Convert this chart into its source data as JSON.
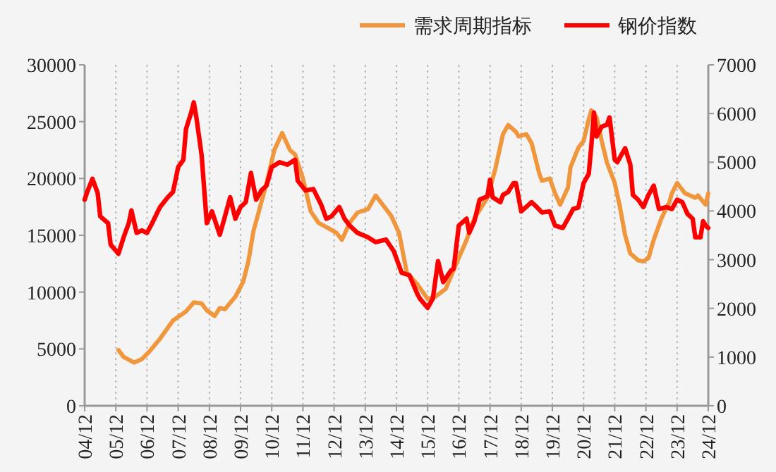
{
  "chart_data": {
    "type": "line",
    "legend": "top",
    "grid": "x",
    "line_style": "solid",
    "marker": "none",
    "xlim": [
      "2004-12",
      "2024-12"
    ],
    "xticks": [
      {
        "value": "2004-12",
        "label": "04/12"
      },
      {
        "value": "2005-12",
        "label": "05/12"
      },
      {
        "value": "2006-12",
        "label": "06/12"
      },
      {
        "value": "2007-12",
        "label": "07/12"
      },
      {
        "value": "2008-12",
        "label": "08/12"
      },
      {
        "value": "2009-12",
        "label": "09/12"
      },
      {
        "value": "2010-12",
        "label": "10/12"
      },
      {
        "value": "2011-12",
        "label": "11/12"
      },
      {
        "value": "2012-12",
        "label": "12/12"
      },
      {
        "value": "2013-12",
        "label": "13/12"
      },
      {
        "value": "2014-12",
        "label": "14/12"
      },
      {
        "value": "2015-12",
        "label": "15/12"
      },
      {
        "value": "2016-12",
        "label": "16/12"
      },
      {
        "value": "2017-12",
        "label": "17/12"
      },
      {
        "value": "2018-12",
        "label": "18/12"
      },
      {
        "value": "2019-12",
        "label": "19/12"
      },
      {
        "value": "2020-12",
        "label": "20/12"
      },
      {
        "value": "2021-12",
        "label": "21/12"
      },
      {
        "value": "2022-12",
        "label": "22/12"
      },
      {
        "value": "2023-12",
        "label": "23/12"
      },
      {
        "value": "2024-12",
        "label": "24/12"
      }
    ],
    "ylim": [
      0,
      30000
    ],
    "yticks": [
      0,
      5000,
      10000,
      15000,
      20000,
      25000,
      30000
    ],
    "y2lim": [
      0,
      7000
    ],
    "y2ticks": [
      0,
      1000,
      2000,
      3000,
      4000,
      5000,
      6000,
      7000
    ],
    "series": [
      {
        "name": "需求周期指标",
        "color": "#f0963c",
        "x": [
          "2006-01",
          "2006-03",
          "2006-07",
          "2006-10",
          "2007-01",
          "2007-05",
          "2007-10",
          "2008-03",
          "2008-06",
          "2008-09",
          "2008-11",
          "2009-02",
          "2009-04",
          "2009-06",
          "2009-10",
          "2010-01",
          "2010-03",
          "2010-05",
          "2010-08",
          "2010-10",
          "2011-01",
          "2011-04",
          "2011-07",
          "2011-09",
          "2011-12",
          "2012-03",
          "2012-06",
          "2012-10",
          "2013-01",
          "2013-03",
          "2013-06",
          "2013-09",
          "2014-01",
          "2014-04",
          "2014-06",
          "2014-10",
          "2015-01",
          "2015-04",
          "2015-08",
          "2015-12",
          "2016-03",
          "2016-07",
          "2016-11",
          "2017-03",
          "2017-06",
          "2017-11",
          "2018-02",
          "2018-05",
          "2018-07",
          "2018-10",
          "2018-11",
          "2019-02",
          "2019-04",
          "2019-07",
          "2019-08",
          "2019-11",
          "2020-01",
          "2020-03",
          "2020-06",
          "2020-07",
          "2020-10",
          "2020-12",
          "2021-02",
          "2021-03",
          "2021-05",
          "2021-07",
          "2021-09",
          "2021-12",
          "2022-02",
          "2022-04",
          "2022-06",
          "2022-09",
          "2022-11",
          "2023-01",
          "2023-03",
          "2023-06",
          "2023-09",
          "2023-10",
          "2023-12",
          "2024-03",
          "2024-07",
          "2024-08",
          "2024-11",
          "2024-12"
        ],
        "values": [
          4900,
          4300,
          3800,
          4100,
          4800,
          5900,
          7500,
          8300,
          9100,
          9000,
          8400,
          7900,
          8600,
          8500,
          9600,
          10900,
          12700,
          15400,
          17900,
          19600,
          22500,
          24000,
          22500,
          22100,
          20000,
          17100,
          16100,
          15600,
          15200,
          14600,
          16100,
          17000,
          17300,
          18500,
          17900,
          16700,
          15200,
          11700,
          10700,
          9400,
          9600,
          10300,
          12500,
          14600,
          16500,
          18300,
          20800,
          23900,
          24700,
          24100,
          23700,
          23900,
          23100,
          20400,
          19800,
          20000,
          18700,
          17700,
          19200,
          21000,
          22700,
          23300,
          25200,
          26000,
          25400,
          23300,
          21400,
          19600,
          17500,
          15000,
          13400,
          12800,
          12700,
          13000,
          14600,
          16500,
          17900,
          18700,
          19600,
          18700,
          18300,
          18500,
          17700,
          18700
        ]
      },
      {
        "name": "钢价指数",
        "color": "#ff0000",
        "axis": "y2",
        "x": [
          "2004-12",
          "2005-01",
          "2005-03",
          "2005-05",
          "2005-06",
          "2005-09",
          "2005-10",
          "2006-01",
          "2006-03",
          "2006-05",
          "2006-06",
          "2006-08",
          "2006-10",
          "2006-12",
          "2007-02",
          "2007-05",
          "2007-08",
          "2007-10",
          "2007-12",
          "2008-02",
          "2008-03",
          "2008-05",
          "2008-06",
          "2008-07",
          "2008-09",
          "2008-11",
          "2009-01",
          "2009-04",
          "2009-06",
          "2009-08",
          "2009-10",
          "2009-12",
          "2010-02",
          "2010-04",
          "2010-06",
          "2010-08",
          "2010-10",
          "2010-12",
          "2011-03",
          "2011-06",
          "2011-09",
          "2011-10",
          "2012-01",
          "2012-04",
          "2012-07",
          "2012-09",
          "2012-11",
          "2013-02",
          "2013-04",
          "2013-06",
          "2013-09",
          "2014-01",
          "2014-04",
          "2014-08",
          "2014-11",
          "2015-02",
          "2015-05",
          "2015-08",
          "2015-09",
          "2015-12",
          "2016-02",
          "2016-04",
          "2016-06",
          "2016-09",
          "2016-10",
          "2016-12",
          "2017-03",
          "2017-04",
          "2017-06",
          "2017-08",
          "2017-11",
          "2017-12",
          "2018-01",
          "2018-04",
          "2018-05",
          "2018-07",
          "2018-09",
          "2018-10",
          "2018-12",
          "2019-04",
          "2019-06",
          "2019-08",
          "2019-11",
          "2020-01",
          "2020-04",
          "2020-06",
          "2020-08",
          "2020-10",
          "2020-12",
          "2021-02",
          "2021-03",
          "2021-04",
          "2021-05",
          "2021-07",
          "2021-09",
          "2021-10",
          "2021-12",
          "2022-01",
          "2022-04",
          "2022-06",
          "2022-07",
          "2022-09",
          "2022-11",
          "2023-01",
          "2023-03",
          "2023-05",
          "2023-08",
          "2023-10",
          "2023-12",
          "2024-02",
          "2024-04",
          "2024-06",
          "2024-07",
          "2024-09",
          "2024-10",
          "2024-11",
          "2024-12"
        ],
        "values": [
          4230,
          4390,
          4660,
          4370,
          3890,
          3750,
          3310,
          3120,
          3460,
          3750,
          4010,
          3550,
          3600,
          3550,
          3750,
          4080,
          4280,
          4390,
          4900,
          5050,
          5680,
          6020,
          6230,
          5920,
          5150,
          3750,
          3990,
          3510,
          3890,
          4280,
          3840,
          4080,
          4180,
          4780,
          4230,
          4420,
          4520,
          4900,
          5000,
          4950,
          5050,
          4620,
          4420,
          4450,
          4130,
          3840,
          3890,
          4080,
          3840,
          3700,
          3550,
          3460,
          3360,
          3410,
          3170,
          2730,
          2680,
          2300,
          2200,
          2010,
          2200,
          2970,
          2540,
          2780,
          2810,
          3700,
          3840,
          3550,
          3790,
          4230,
          4300,
          4640,
          4280,
          4180,
          4330,
          4390,
          4570,
          4570,
          3990,
          4180,
          4080,
          3970,
          3990,
          3700,
          3650,
          3840,
          4040,
          4070,
          4570,
          4760,
          5340,
          6020,
          5530,
          5730,
          5770,
          5920,
          5050,
          5000,
          5290,
          4950,
          4330,
          4230,
          4080,
          4330,
          4520,
          4040,
          4080,
          4040,
          4230,
          4180,
          3940,
          3840,
          3460,
          3460,
          3790,
          3700,
          3650
        ]
      }
    ]
  }
}
